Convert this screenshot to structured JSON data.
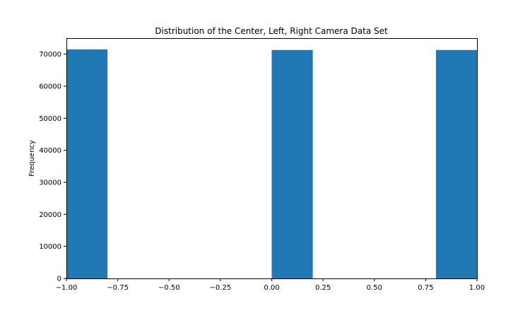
{
  "chart_data": {
    "type": "bar",
    "title": "Distribution of the Center, Left, Right Camera Data Set",
    "xlabel": "",
    "ylabel": "Frequency",
    "xlim": [
      -1.0,
      1.0
    ],
    "ylim": [
      0,
      75000
    ],
    "grid": false,
    "bar_color": "#1f77b4",
    "bins": [
      {
        "x0": -1.0,
        "x1": -0.8,
        "value": 71500
      },
      {
        "x0": -0.8,
        "x1": -0.6,
        "value": 0
      },
      {
        "x0": -0.6,
        "x1": -0.4,
        "value": 0
      },
      {
        "x0": -0.4,
        "x1": -0.2,
        "value": 0
      },
      {
        "x0": -0.2,
        "x1": 0.0,
        "value": 0
      },
      {
        "x0": 0.0,
        "x1": 0.2,
        "value": 71300
      },
      {
        "x0": 0.2,
        "x1": 0.4,
        "value": 0
      },
      {
        "x0": 0.4,
        "x1": 0.6,
        "value": 0
      },
      {
        "x0": 0.6,
        "x1": 0.8,
        "value": 0
      },
      {
        "x0": 0.8,
        "x1": 1.0,
        "value": 71300
      }
    ],
    "x_ticks": [
      {
        "value": -1.0,
        "label": "−1.00"
      },
      {
        "value": -0.75,
        "label": "−0.75"
      },
      {
        "value": -0.5,
        "label": "−0.50"
      },
      {
        "value": -0.25,
        "label": "−0.25"
      },
      {
        "value": 0.0,
        "label": "0.00"
      },
      {
        "value": 0.25,
        "label": "0.25"
      },
      {
        "value": 0.5,
        "label": "0.50"
      },
      {
        "value": 0.75,
        "label": "0.75"
      },
      {
        "value": 1.0,
        "label": "1.00"
      }
    ],
    "y_ticks": [
      {
        "value": 0,
        "label": "0"
      },
      {
        "value": 10000,
        "label": "10000"
      },
      {
        "value": 20000,
        "label": "20000"
      },
      {
        "value": 30000,
        "label": "30000"
      },
      {
        "value": 40000,
        "label": "40000"
      },
      {
        "value": 50000,
        "label": "50000"
      },
      {
        "value": 60000,
        "label": "60000"
      },
      {
        "value": 70000,
        "label": "70000"
      }
    ]
  }
}
